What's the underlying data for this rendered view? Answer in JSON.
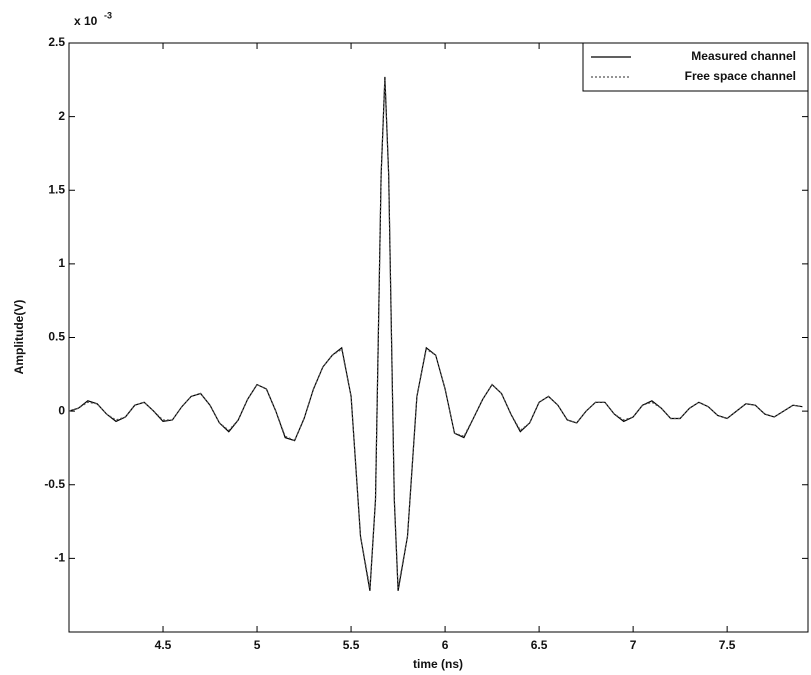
{
  "chart_data": {
    "type": "line",
    "xlabel": "time (ns)",
    "ylabel": "Amplitude(V)",
    "exponent_base": "x 10",
    "exponent": "-3",
    "x": [
      4.0,
      4.05,
      4.1,
      4.15,
      4.2,
      4.25,
      4.3,
      4.35,
      4.4,
      4.45,
      4.5,
      4.55,
      4.6,
      4.65,
      4.7,
      4.75,
      4.8,
      4.85,
      4.9,
      4.95,
      5.0,
      5.05,
      5.1,
      5.15,
      5.2,
      5.25,
      5.3,
      5.35,
      5.4,
      5.45,
      5.5,
      5.55,
      5.6,
      5.63,
      5.66,
      5.68,
      5.7,
      5.73,
      5.75,
      5.8,
      5.85,
      5.9,
      5.95,
      6.0,
      6.05,
      6.1,
      6.15,
      6.2,
      6.25,
      6.3,
      6.35,
      6.4,
      6.45,
      6.5,
      6.55,
      6.6,
      6.65,
      6.7,
      6.75,
      6.8,
      6.85,
      6.9,
      6.95,
      7.0,
      7.05,
      7.1,
      7.15,
      7.2,
      7.25,
      7.3,
      7.35,
      7.4,
      7.45,
      7.5,
      7.55,
      7.6,
      7.65,
      7.7,
      7.75,
      7.8,
      7.85,
      7.9
    ],
    "series": [
      {
        "name": "Measured channel",
        "color": "#000000",
        "dash": "none",
        "values": [
          0.0,
          0.02,
          0.07,
          0.05,
          -0.02,
          -0.07,
          -0.04,
          0.04,
          0.06,
          0.0,
          -0.07,
          -0.06,
          0.03,
          0.1,
          0.12,
          0.04,
          -0.08,
          -0.14,
          -0.06,
          0.08,
          0.18,
          0.15,
          0.0,
          -0.18,
          -0.2,
          -0.05,
          0.15,
          0.3,
          0.38,
          0.43,
          0.1,
          -0.85,
          -1.22,
          -0.6,
          1.6,
          2.27,
          1.6,
          -0.6,
          -1.22,
          -0.85,
          0.1,
          0.43,
          0.38,
          0.15,
          -0.15,
          -0.18,
          -0.05,
          0.08,
          0.18,
          0.12,
          -0.02,
          -0.14,
          -0.08,
          0.06,
          0.1,
          0.04,
          -0.06,
          -0.08,
          0.0,
          0.06,
          0.06,
          -0.02,
          -0.07,
          -0.04,
          0.04,
          0.07,
          0.02,
          -0.05,
          -0.05,
          0.02,
          0.06,
          0.03,
          -0.03,
          -0.05,
          0.0,
          0.05,
          0.04,
          -0.02,
          -0.04,
          0.0,
          0.04,
          0.03
        ]
      },
      {
        "name": "Free space channel",
        "color": "#555555",
        "dash": "2,2",
        "values": [
          0.0,
          0.02,
          0.06,
          0.05,
          -0.02,
          -0.06,
          -0.04,
          0.04,
          0.06,
          0.0,
          -0.06,
          -0.06,
          0.03,
          0.1,
          0.12,
          0.04,
          -0.08,
          -0.13,
          -0.06,
          0.08,
          0.18,
          0.15,
          0.0,
          -0.17,
          -0.2,
          -0.05,
          0.15,
          0.3,
          0.38,
          0.42,
          0.1,
          -0.85,
          -1.2,
          -0.6,
          1.6,
          2.25,
          1.6,
          -0.6,
          -1.2,
          -0.85,
          0.1,
          0.42,
          0.38,
          0.15,
          -0.15,
          -0.17,
          -0.05,
          0.08,
          0.18,
          0.12,
          -0.02,
          -0.13,
          -0.08,
          0.06,
          0.1,
          0.04,
          -0.06,
          -0.08,
          0.0,
          0.06,
          0.06,
          -0.02,
          -0.06,
          -0.04,
          0.04,
          0.06,
          0.02,
          -0.05,
          -0.05,
          0.02,
          0.06,
          0.03,
          -0.03,
          -0.05,
          0.0,
          0.05,
          0.04,
          -0.02,
          -0.04,
          0.0,
          0.04,
          0.03
        ]
      }
    ],
    "xlim": [
      4.0,
      7.93
    ],
    "ylim": [
      -1.5,
      2.5
    ],
    "xticks": [
      4.5,
      5,
      5.5,
      6,
      6.5,
      7,
      7.5
    ],
    "yticks": [
      -1,
      -0.5,
      0,
      0.5,
      1,
      1.5,
      2,
      2.5
    ],
    "grid": false,
    "legend": "upper right"
  }
}
